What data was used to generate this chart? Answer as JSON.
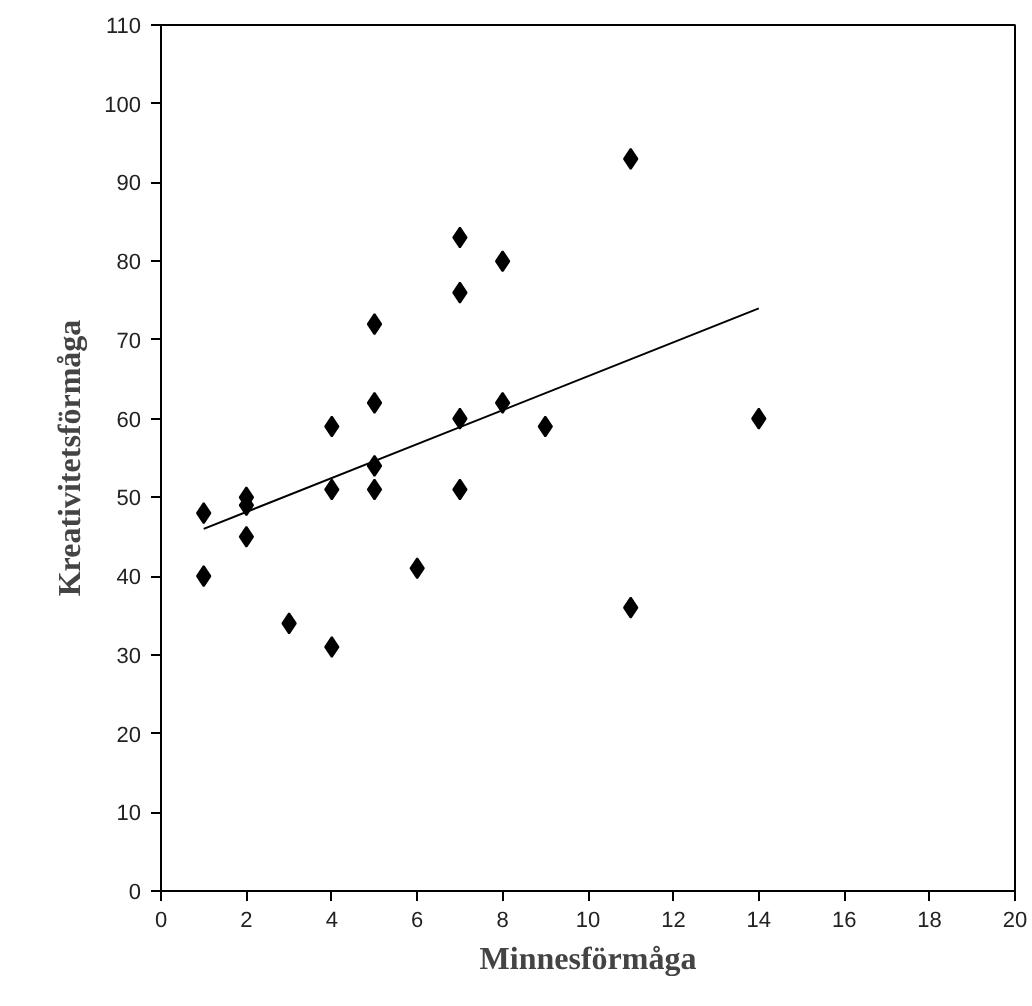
{
  "chart_data": {
    "type": "scatter",
    "xlabel": "Minnesförmåga",
    "ylabel": "Kreativitetsförmåga",
    "xlim": [
      0,
      20
    ],
    "xticks": [
      0,
      2,
      4,
      6,
      8,
      10,
      12,
      14,
      16,
      18,
      20
    ],
    "ylim": [
      0,
      110
    ],
    "yticks": [
      0,
      10,
      20,
      30,
      40,
      50,
      60,
      70,
      80,
      90,
      100,
      110
    ],
    "grid": false,
    "series": [
      {
        "marker": "diamond",
        "color": "#000000",
        "x": [
          1,
          1,
          2,
          2,
          2,
          3,
          4,
          4,
          4,
          5,
          5,
          5,
          5,
          6,
          7,
          7,
          7,
          7,
          8,
          8,
          9,
          11,
          11,
          14
        ],
        "values": [
          48,
          40,
          50,
          49,
          45,
          34,
          59,
          51,
          31,
          72,
          62,
          54,
          51,
          41,
          83,
          76,
          60,
          51,
          80,
          62,
          59,
          93,
          36,
          60
        ]
      },
      {
        "type": "line",
        "color": "#000000",
        "x": [
          1,
          14
        ],
        "values": [
          46,
          74
        ]
      }
    ]
  }
}
